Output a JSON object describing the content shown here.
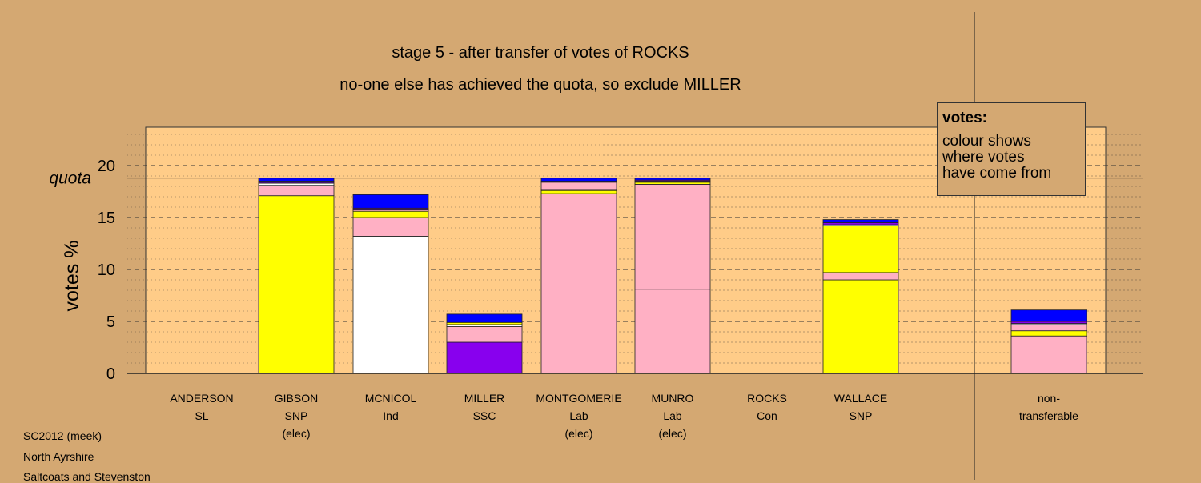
{
  "titles": {
    "line1": "stage 5 - after transfer of votes of ROCKS",
    "line2": "no-one else has achieved the quota, so exclude MILLER"
  },
  "legend": {
    "title": "votes:",
    "text_lines": [
      "colour shows",
      "where votes",
      "have come from"
    ]
  },
  "footer": {
    "line1": "SC2012 (meek)",
    "line2": "North Ayrshire",
    "line3": "Saltcoats and Stevenston"
  },
  "chart_data": {
    "type": "bar",
    "stacked": true,
    "ylabel": "votes %",
    "ylim": [
      0,
      23.2
    ],
    "yticks": [
      0,
      5,
      10,
      15,
      20
    ],
    "quota": {
      "label": "quota",
      "value": 18.8
    },
    "grid": "dashed major every 5, dotted minor every 1",
    "legend_placement": "top-right",
    "categories": [
      {
        "name": "ANDERSON",
        "party": "SL",
        "note": ""
      },
      {
        "name": "GIBSON",
        "party": "SNP",
        "note": "(elec)"
      },
      {
        "name": "MCNICOL",
        "party": "Ind",
        "note": ""
      },
      {
        "name": "MILLER",
        "party": "SSC",
        "note": ""
      },
      {
        "name": "MONTGOMERIE",
        "party": "Lab",
        "note": "(elec)"
      },
      {
        "name": "MUNRO",
        "party": "Lab",
        "note": "(elec)"
      },
      {
        "name": "ROCKS",
        "party": "Con",
        "note": ""
      },
      {
        "name": "WALLACE",
        "party": "SNP",
        "note": ""
      },
      {
        "name": "",
        "party": "",
        "note": ""
      },
      {
        "name": "non-",
        "party": "transferable",
        "note": ""
      }
    ],
    "stacks": [
      [],
      [
        {
          "value": 17.1,
          "color": "#ffff00"
        },
        {
          "value": 1.0,
          "color": "#ffb0c4"
        },
        {
          "value": 0.2,
          "color": "#ffffff"
        },
        {
          "value": 0.1,
          "color": "#8800ee"
        },
        {
          "value": 0.1,
          "color": "#ffff00"
        },
        {
          "value": 0.3,
          "color": "#0000ff"
        }
      ],
      [
        {
          "value": 13.2,
          "color": "#ffffff"
        },
        {
          "value": 1.8,
          "color": "#ffb0c4"
        },
        {
          "value": 0.6,
          "color": "#ffff00"
        },
        {
          "value": 0.2,
          "color": "#ffb0c4"
        },
        {
          "value": 0.1,
          "color": "#8800ee"
        },
        {
          "value": 1.3,
          "color": "#0000ff"
        }
      ],
      [
        {
          "value": 3.0,
          "color": "#8800ee"
        },
        {
          "value": 1.5,
          "color": "#ffb0c4"
        },
        {
          "value": 0.2,
          "color": "#ffffff"
        },
        {
          "value": 0.2,
          "color": "#ffff00"
        },
        {
          "value": 0.8,
          "color": "#0000ff"
        }
      ],
      [
        {
          "value": 17.3,
          "color": "#ffb0c4"
        },
        {
          "value": 0.3,
          "color": "#ffff00"
        },
        {
          "value": 0.1,
          "color": "#ffffff"
        },
        {
          "value": 0.7,
          "color": "#ffb0c4"
        },
        {
          "value": 0.1,
          "color": "#8800ee"
        },
        {
          "value": 0.3,
          "color": "#0000ff"
        }
      ],
      [
        {
          "value": 8.1,
          "color": "#ffb0c4"
        },
        {
          "value": 10.1,
          "color": "#ffb0c4"
        },
        {
          "value": 0.2,
          "color": "#ffff00"
        },
        {
          "value": 0.1,
          "color": "#ffffff"
        },
        {
          "value": 0.1,
          "color": "#8800ee"
        },
        {
          "value": 0.2,
          "color": "#0000ff"
        }
      ],
      [],
      [
        {
          "value": 9.0,
          "color": "#ffff00"
        },
        {
          "value": 0.7,
          "color": "#ffb0c4"
        },
        {
          "value": 4.5,
          "color": "#ffff00"
        },
        {
          "value": 0.1,
          "color": "#ffffff"
        },
        {
          "value": 0.2,
          "color": "#8800ee"
        },
        {
          "value": 0.3,
          "color": "#0000ff"
        }
      ],
      [],
      [
        {
          "value": 3.6,
          "color": "#ffb0c4"
        },
        {
          "value": 0.5,
          "color": "#ffff00"
        },
        {
          "value": 0.6,
          "color": "#ffb0c4"
        },
        {
          "value": 0.1,
          "color": "#ffffff"
        },
        {
          "value": 0.2,
          "color": "#8800ee"
        },
        {
          "value": 1.1,
          "color": "#0000ff"
        }
      ]
    ]
  }
}
